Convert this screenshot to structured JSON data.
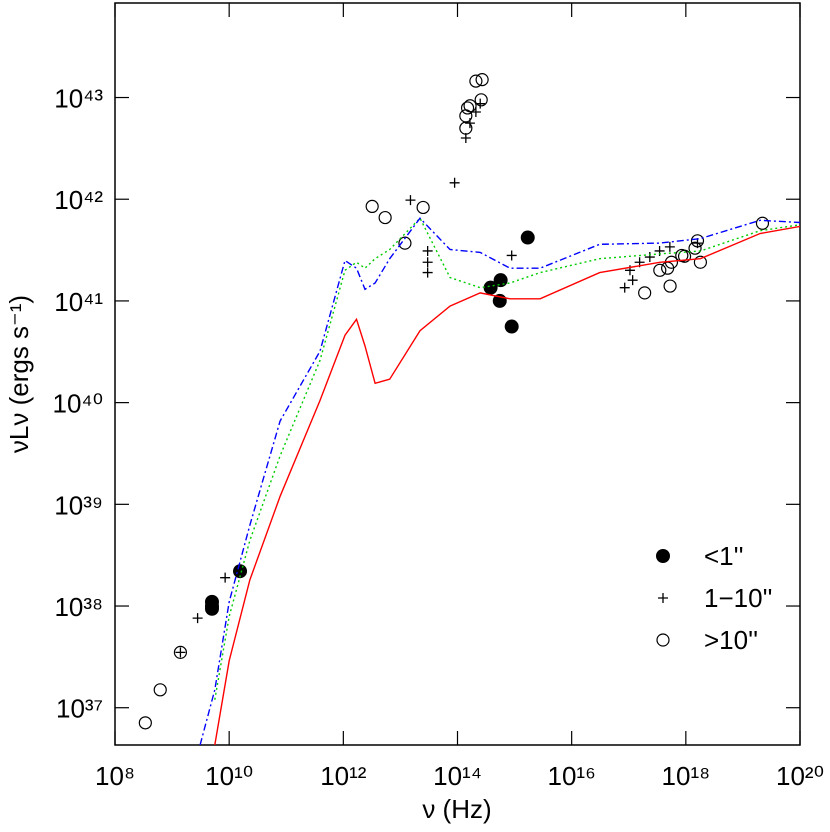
{
  "chart_data": {
    "type": "scatter",
    "xlabel": "ν (Hz)",
    "ylabel": "νLν (ergs s⁻¹)",
    "log_x": true,
    "log_y": true,
    "xlim": [
      100000000.0,
      1e+20
    ],
    "ylim": [
      4.3e+36,
      8.5e+43
    ],
    "xticks": [
      {
        "value": 100000000.0,
        "label": "10⁸"
      },
      {
        "value": 10000000000.0,
        "label": "10¹⁰"
      },
      {
        "value": 1000000000000.0,
        "label": "10¹²"
      },
      {
        "value": 100000000000000.0,
        "label": "10¹⁴"
      },
      {
        "value": 1e+16,
        "label": "10¹⁶"
      },
      {
        "value": 1e+18,
        "label": "10¹⁸"
      },
      {
        "value": 1e+20,
        "label": "10²⁰"
      }
    ],
    "yticks": [
      {
        "value": 1e+37,
        "label": "10³⁷"
      },
      {
        "value": 1e+38,
        "label": "10³⁸"
      },
      {
        "value": 1e+39,
        "label": "10³⁹"
      },
      {
        "value": 1e+40,
        "label": "10⁴⁰"
      },
      {
        "value": 1e+41,
        "label": "10⁴¹"
      },
      {
        "value": 1e+42,
        "label": "10⁴²"
      },
      {
        "value": 1e+43,
        "label": "10⁴³"
      }
    ],
    "legend": "lower right",
    "series": [
      {
        "type": "scatter",
        "name": "<1''",
        "marker": "filled-circle",
        "color": "#000000",
        "x": [
          15500000000.0,
          5000000000.0,
          5000000000.0,
          5000000000.0,
          380000000000000.0,
          570000000000000.0,
          550000000000000.0,
          890000000000000.0,
          1700000000000000.0
        ],
        "values": [
          2.2e+38,
          1.1e+38,
          1e+38,
          9.4e+37,
          1.35e+41,
          1.6e+41,
          1e+41,
          5.6e+40,
          4.2e+41
        ]
      },
      {
        "type": "scatter",
        "name": "1−10''",
        "marker": "plus",
        "color": "#000000",
        "x": [
          8500000000.0,
          2800000000.0,
          1400000000.0,
          15000000000000.0,
          30000000000000.0,
          30000000000000.0,
          30000000000000.0,
          89000000000000.0,
          140000000000000.0,
          165000000000000.0,
          210000000000000.0,
          250000000000000.0,
          890000000000000.0,
          8.5e+16,
          1.05e+17,
          1.17e+17,
          1.55e+17,
          2.34e+17,
          3.47e+17,
          5.25e+17,
          1.6e+18
        ],
        "values": [
          1.9e+38,
          7.6e+37,
          3.5e+37,
          9.8e+41,
          3.1e+41,
          2.4e+41,
          1.9e+41,
          1.45e+42,
          4e+42,
          5.6e+42,
          7.2e+42,
          8.7e+42,
          2.8e+41,
          1.35e+41,
          2e+41,
          1.6e+41,
          2.4e+41,
          2.7e+41,
          3.1e+41,
          3.4e+41,
          3.7e+41
        ]
      },
      {
        "type": "scatter",
        "name": ">10''",
        "marker": "open-circle",
        "color": "#000000",
        "x": [
          340000000.0,
          620000000.0,
          1400000000.0,
          3200000000000.0,
          5400000000000.0,
          12000000000000.0,
          25000000000000.0,
          140000000000000.0,
          166000000000000.0,
          210000000000000.0,
          270000000000000.0,
          260000000000000.0,
          150000000000000.0,
          140000000000000.0,
          1.9e+17,
          3.5e+17,
          5.6e+17,
          9.5e+17,
          1.8e+18,
          1.45e+18,
          1.6e+18,
          8.5e+17,
          5.3e+17,
          4.8e+17,
          2.2e+19
        ],
        "values": [
          7.1e+36,
          1.5e+37,
          3.5e+37,
          8.5e+41,
          6.6e+41,
          3.7e+41,
          8.3e+41,
          5e+42,
          8.3e+42,
          1.45e+43,
          1.5e+43,
          9.5e+42,
          7.9e+42,
          6.6e+42,
          1.2e+41,
          2e+41,
          2.4e+41,
          2.75e+41,
          2.4e+41,
          3.3e+41,
          3.9e+41,
          2.8e+41,
          1.4e+41,
          2.1e+41,
          5.8e+41
        ]
      },
      {
        "type": "line",
        "linestyle": "solid",
        "color": "#ff0000",
        "x": [
          5600000000.0,
          10000000000.0,
          23000000000.0,
          78000000000.0,
          390000000000.0,
          1070000000000.0,
          1700000000000.0,
          2400000000000.0,
          3600000000000.0,
          6500000000000.0,
          22000000000000.0,
          74000000000000.0,
          250000000000000.0,
          830000000000000.0,
          2800000000000000.0,
          3.1e+16,
          3.5e+17,
          1.8e+18,
          2e+19,
          1e+20
        ],
        "values": [
          4.3e+36,
          2.9e+37,
          1.8e+38,
          1.2e+39,
          1.05e+40,
          4.6e+40,
          6.6e+40,
          3.6e+40,
          1.55e+40,
          1.7e+40,
          5.1e+40,
          8.9e+40,
          1.2e+41,
          1.05e+41,
          1.05e+41,
          1.9e+41,
          2.4e+41,
          2.6e+41,
          4.6e+41,
          5.4e+41
        ]
      },
      {
        "type": "line",
        "linestyle": "dotted",
        "color": "#00cc00",
        "x": [
          5600000000.0,
          10000000000.0,
          23000000000.0,
          78000000000.0,
          390000000000.0,
          1070000000000.0,
          1700000000000.0,
          2400000000000.0,
          3600000000000.0,
          6500000000000.0,
          22000000000000.0,
          74000000000000.0,
          250000000000000.0,
          830000000000000.0,
          2800000000000000.0,
          3.1e+16,
          3.5e+17,
          1.8e+18,
          2e+19,
          1e+20
        ],
        "values": [
          1.2e+37,
          7.9e+37,
          4.4e+38,
          3e+39,
          2.6e+40,
          2e+41,
          2.4e+41,
          2.1e+41,
          2.6e+41,
          3.2e+41,
          6.5e+41,
          1.7e+41,
          1.35e+41,
          1.5e+41,
          1.9e+41,
          2.6e+41,
          2.9e+41,
          3.1e+41,
          4.9e+41,
          5.6e+41
        ]
      },
      {
        "type": "line",
        "linestyle": "dashdot",
        "color": "#0000ff",
        "x": [
          3100000000.0,
          5600000000.0,
          10000000000.0,
          23000000000.0,
          78000000000.0,
          390000000000.0,
          1070000000000.0,
          1700000000000.0,
          2400000000000.0,
          3600000000000.0,
          6500000000000.0,
          22000000000000.0,
          74000000000000.0,
          250000000000000.0,
          830000000000000.0,
          2800000000000000.0,
          3.1e+16,
          3.5e+17,
          1.8e+18,
          2e+19,
          1e+20
        ],
        "values": [
          4.3e+36,
          1.5e+37,
          1.1e+38,
          6.2e+38,
          6.6e+39,
          3.2e+40,
          2.5e+41,
          2.1e+41,
          1.3e+41,
          1.5e+41,
          2.6e+41,
          6.5e+41,
          3.2e+41,
          3e+41,
          2.1e+41,
          2.1e+41,
          3.6e+41,
          3.7e+41,
          4.1e+41,
          6.2e+41,
          5.9e+41
        ]
      }
    ]
  }
}
